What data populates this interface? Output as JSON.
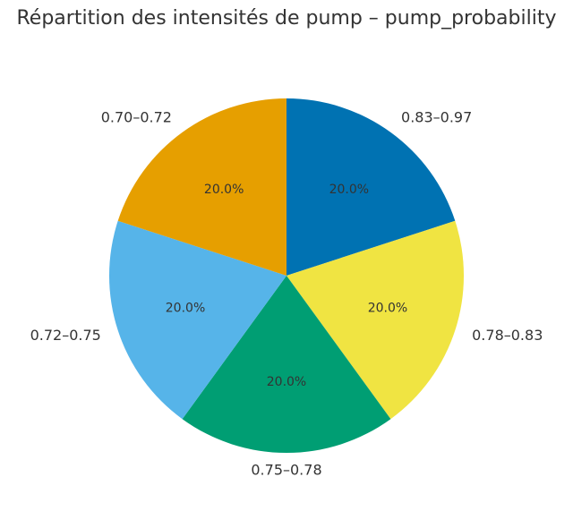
{
  "chart_data": {
    "type": "pie",
    "title": "Répartition des intensités de pump – pump_probability",
    "slices": [
      {
        "label": "0.83–0.97",
        "value": 20.0,
        "pct_label": "20.0%",
        "color": "#0072b2"
      },
      {
        "label": "0.78–0.83",
        "value": 20.0,
        "pct_label": "20.0%",
        "color": "#f0e442"
      },
      {
        "label": "0.75–0.78",
        "value": 20.0,
        "pct_label": "20.0%",
        "color": "#009e73"
      },
      {
        "label": "0.72–0.75",
        "value": 20.0,
        "pct_label": "20.0%",
        "color": "#56b4e9"
      },
      {
        "label": "0.70–0.72",
        "value": 20.0,
        "pct_label": "20.0%",
        "color": "#e69f00"
      }
    ],
    "start_angle_deg": 90,
    "direction": "clockwise",
    "legend": "none"
  }
}
